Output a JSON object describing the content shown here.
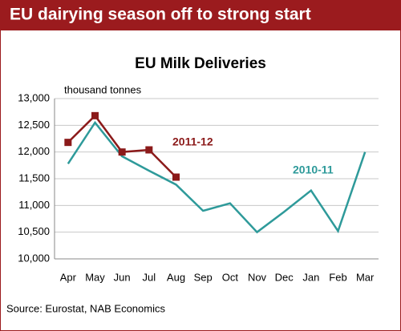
{
  "chart_data": {
    "type": "line",
    "header": "EU dairying season off to strong start",
    "title": "EU Milk Deliveries",
    "y_label": "thousand tonnes",
    "source": "Source: Eurostat, NAB Economics",
    "categories": [
      "Apr",
      "May",
      "Jun",
      "Jul",
      "Aug",
      "Sep",
      "Oct",
      "Nov",
      "Dec",
      "Jan",
      "Feb",
      "Mar"
    ],
    "series": [
      {
        "name": "2011-12",
        "color": "#8b1a1a",
        "marker": "square",
        "values": [
          12180,
          12680,
          12000,
          12040,
          11530,
          null,
          null,
          null,
          null,
          null,
          null,
          null
        ]
      },
      {
        "name": "2010-11",
        "color": "#2e9a9a",
        "marker": "none",
        "values": [
          11780,
          12550,
          11920,
          11650,
          11390,
          10900,
          11040,
          10500,
          10880,
          11280,
          10520,
          12000
        ]
      }
    ],
    "ylim": [
      10000,
      13000
    ],
    "yticks": [
      {
        "value": 10000,
        "label": "10,000"
      },
      {
        "value": 10500,
        "label": "10,500"
      },
      {
        "value": 11000,
        "label": "11,000"
      },
      {
        "value": 11500,
        "label": "11,500"
      },
      {
        "value": 12000,
        "label": "12,000"
      },
      {
        "value": 12500,
        "label": "12,500"
      },
      {
        "value": 13000,
        "label": "13,000"
      }
    ],
    "grid": true
  }
}
